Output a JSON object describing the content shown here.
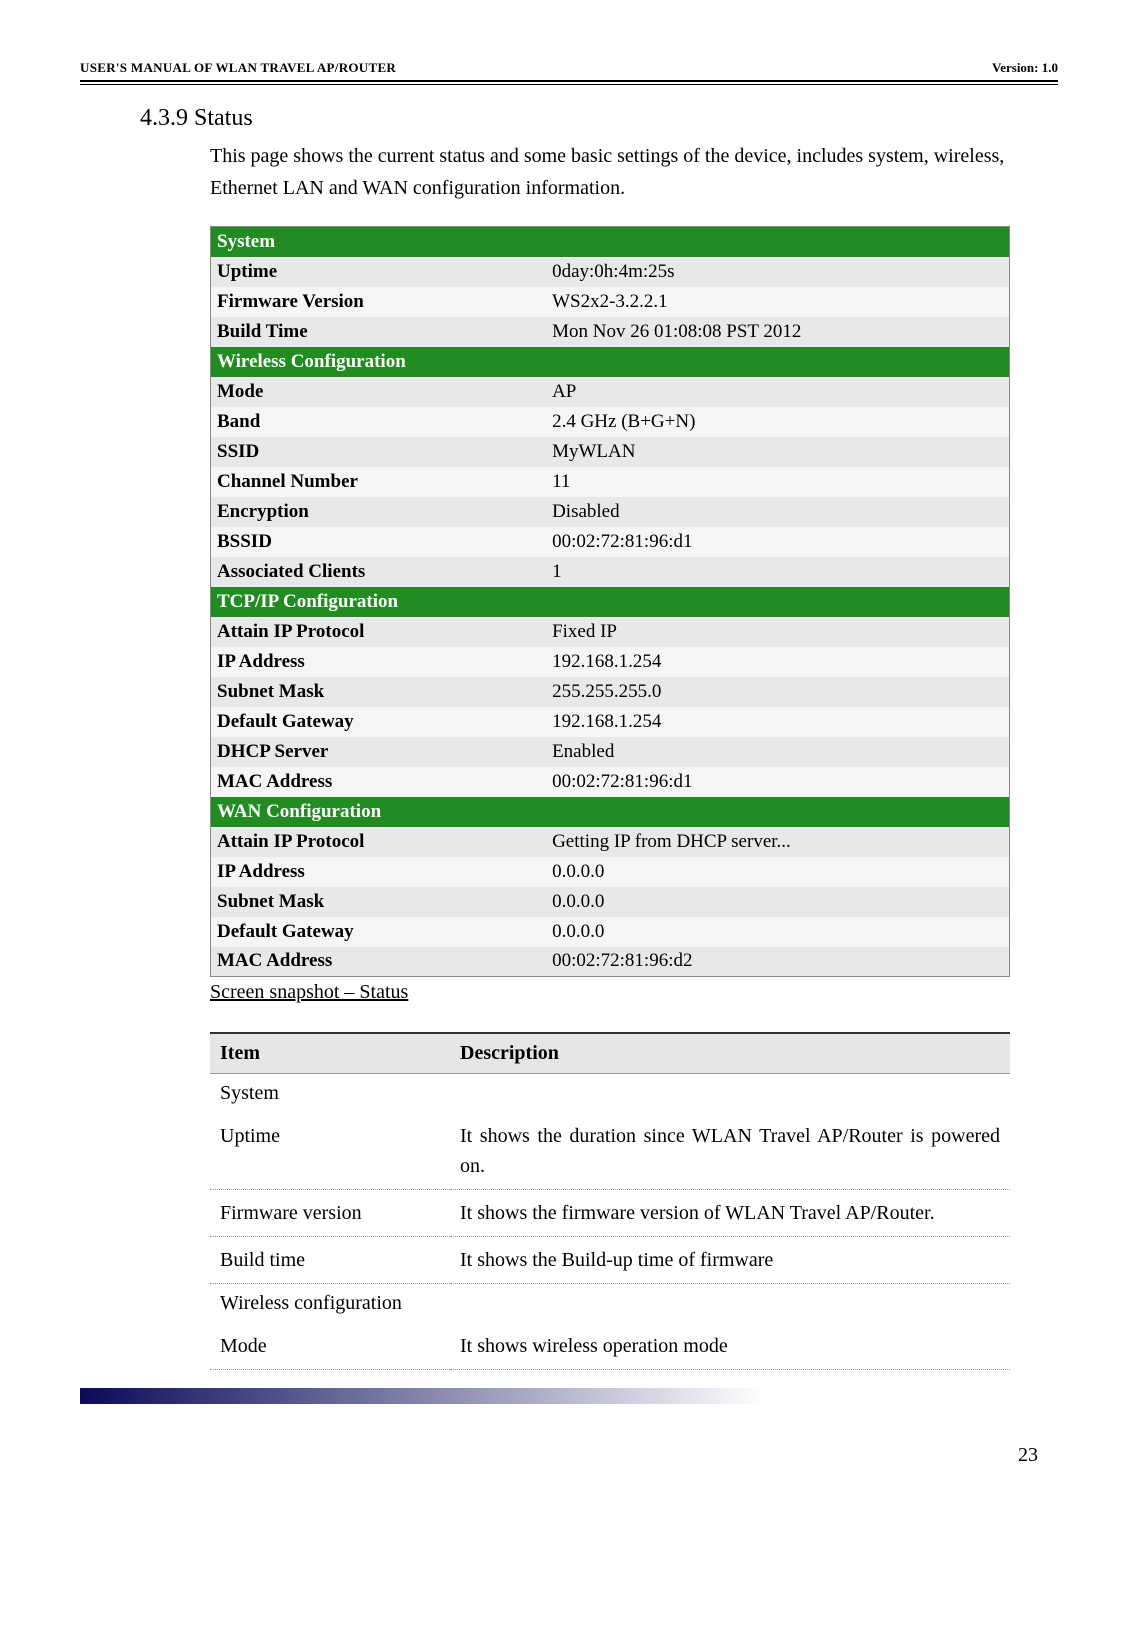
{
  "header": {
    "left": "USER'S MANUAL OF WLAN TRAVEL AP/ROUTER",
    "right": "Version: 1.0"
  },
  "section": {
    "number": "4.3.9",
    "title": "Status",
    "paragraph": "This page shows the current status and some basic settings of the device, includes system, wireless, Ethernet LAN and WAN configuration information."
  },
  "status": {
    "system_header": "System",
    "uptime_label": "Uptime",
    "uptime_value": "0day:0h:4m:25s",
    "fw_label": "Firmware Version",
    "fw_value": "WS2x2-3.2.2.1",
    "build_label": "Build Time",
    "build_value": "Mon Nov 26 01:08:08 PST 2012",
    "wireless_header": "Wireless Configuration",
    "mode_label": "Mode",
    "mode_value": "AP",
    "band_label": "Band",
    "band_value": "2.4 GHz (B+G+N)",
    "ssid_label": "SSID",
    "ssid_value": "MyWLAN",
    "chan_label": "Channel Number",
    "chan_value": "11",
    "enc_label": "Encryption",
    "enc_value": "Disabled",
    "bssid_label": "BSSID",
    "bssid_value": "00:02:72:81:96:d1",
    "assoc_label": "Associated Clients",
    "assoc_value": "1",
    "tcpip_header": "TCP/IP Configuration",
    "attain_label": "Attain IP Protocol",
    "attain_value": "Fixed IP",
    "ip_label": "IP Address",
    "ip_value": "192.168.1.254",
    "subnet_label": "Subnet Mask",
    "subnet_value": "255.255.255.0",
    "gw_label": "Default Gateway",
    "gw_value": "192.168.1.254",
    "dhcp_label": "DHCP Server",
    "dhcp_value": "Enabled",
    "mac_label": "MAC Address",
    "mac_value": "00:02:72:81:96:d1",
    "wan_header": "WAN Configuration",
    "wan_attain_label": "Attain IP Protocol",
    "wan_attain_value": "Getting IP from DHCP server...",
    "wan_ip_label": "IP Address",
    "wan_ip_value": "0.0.0.0",
    "wan_subnet_label": "Subnet Mask",
    "wan_subnet_value": "0.0.0.0",
    "wan_gw_label": "Default Gateway",
    "wan_gw_value": "0.0.0.0",
    "wan_mac_label": "MAC Address",
    "wan_mac_value": "00:02:72:81:96:d2"
  },
  "caption": "Screen snapshot – Status",
  "desc": {
    "header_item": "Item",
    "header_desc": "Description",
    "system": "System",
    "uptime_item": "Uptime",
    "uptime_desc": "It shows the duration since WLAN Travel AP/Router is powered on.",
    "fw_item": "Firmware version",
    "fw_desc": "It shows the firmware version of WLAN Travel AP/Router.",
    "build_item": "Build time",
    "build_desc": "It shows the Build-up time of firmware",
    "wireless": "Wireless configuration",
    "mode_item": "Mode",
    "mode_desc": "It shows wireless operation mode"
  },
  "page_number": "23"
}
